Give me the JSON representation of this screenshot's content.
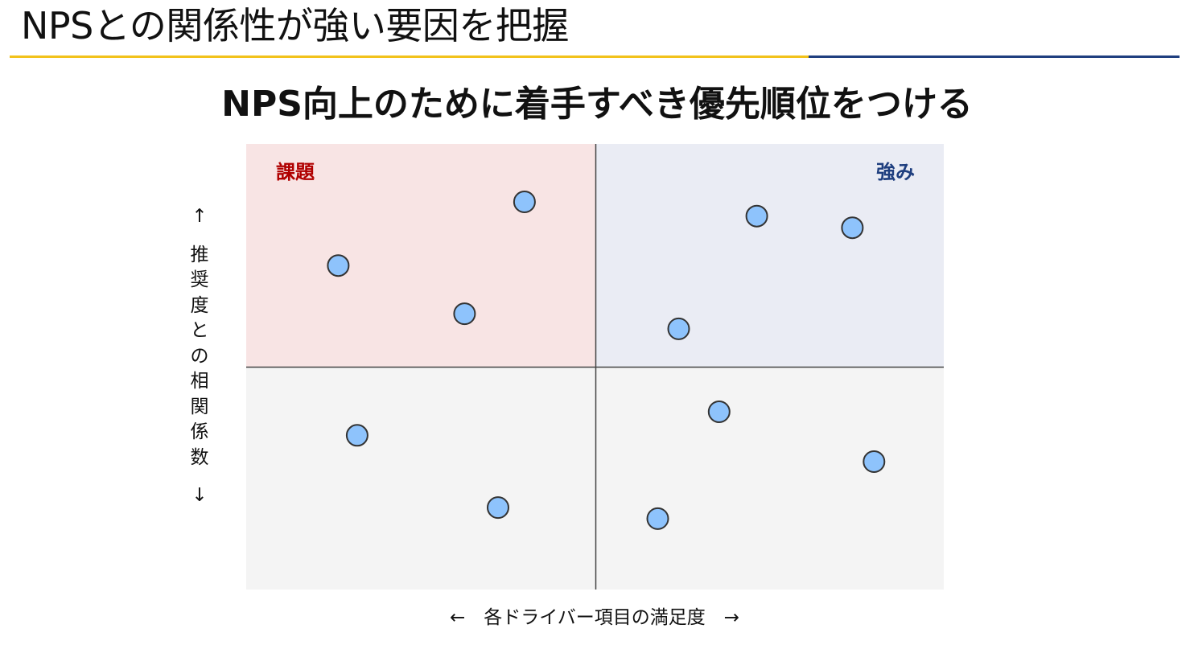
{
  "header": {
    "title": "NPSとの関係性が強い要因を把握",
    "subtitle": "NPS向上のために着手すべき優先順位をつける"
  },
  "colors": {
    "title_rule_left": "#f2c21b",
    "title_rule_right": "#1f3f7f",
    "quadrant_issue_bg": "#f8e4e4",
    "quadrant_strength_bg": "#eaecf4",
    "quadrant_bottom_bg": "#f4f4f4",
    "issue_label": "#b00000",
    "strength_label": "#1f3f7f",
    "point_fill": "#8ec3fc",
    "point_stroke": "#333333"
  },
  "chart_data": {
    "type": "scatter",
    "title": "",
    "xlabel_text": "←　各ドライバー項目の満足度　→",
    "ylabel_chars": [
      "↑",
      "推",
      "奨",
      "度",
      "と",
      "の",
      "相",
      "関",
      "係",
      "数",
      "↓"
    ],
    "quadrant_labels": {
      "top_left": "課題",
      "top_right": "強み"
    },
    "xlim": [
      0,
      1
    ],
    "ylim": [
      0,
      1
    ],
    "x_divider": 0.5,
    "y_divider": 0.5,
    "grid": false,
    "series": [
      {
        "points": [
          {
            "x": 0.132,
            "y": 0.727
          },
          {
            "x": 0.313,
            "y": 0.619
          },
          {
            "x": 0.399,
            "y": 0.87
          },
          {
            "x": 0.732,
            "y": 0.838
          },
          {
            "x": 0.869,
            "y": 0.812
          },
          {
            "x": 0.62,
            "y": 0.585
          },
          {
            "x": 0.159,
            "y": 0.346
          },
          {
            "x": 0.361,
            "y": 0.184
          },
          {
            "x": 0.678,
            "y": 0.399
          },
          {
            "x": 0.9,
            "y": 0.287
          },
          {
            "x": 0.59,
            "y": 0.159
          }
        ]
      }
    ]
  }
}
